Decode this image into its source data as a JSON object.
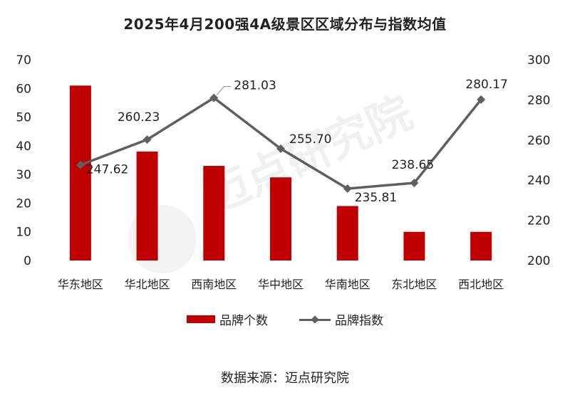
{
  "title": "2025年4月200强4A级景区区域分布与指数均值",
  "source": "数据来源：迈点研究院",
  "watermark": "迈点研究院",
  "colors": {
    "bar": "#c00000",
    "line": "#5f5f5f"
  },
  "chart_data": {
    "type": "bar+line",
    "categories": [
      "华东地区",
      "华北地区",
      "西南地区",
      "华中地区",
      "华南地区",
      "东北地区",
      "西北地区"
    ],
    "series": [
      {
        "name": "品牌个数",
        "type": "bar",
        "axis": "left",
        "values": [
          61,
          38,
          33,
          29,
          19,
          10,
          10
        ]
      },
      {
        "name": "品牌指数",
        "type": "line",
        "axis": "right",
        "marker": "diamond",
        "values": [
          247.62,
          260.23,
          281.03,
          255.7,
          235.81,
          238.65,
          280.17
        ],
        "labels": [
          "247.62",
          "260.23",
          "281.03",
          "255.70",
          "235.81",
          "238.65",
          "280.17"
        ]
      }
    ],
    "y_left": {
      "min": 0,
      "max": 70,
      "ticks": [
        "0",
        "10",
        "20",
        "30",
        "40",
        "50",
        "60",
        "70"
      ]
    },
    "y_right": {
      "min": 200,
      "max": 300,
      "ticks": [
        "200",
        "220",
        "240",
        "260",
        "280",
        "300"
      ]
    },
    "legend_position": "bottom",
    "grid": false
  }
}
